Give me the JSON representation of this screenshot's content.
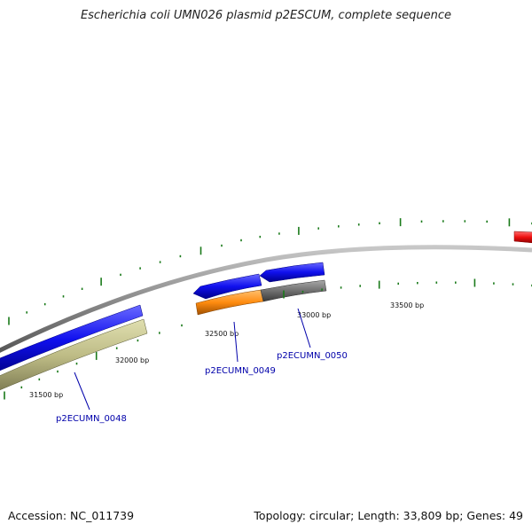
{
  "title": "Escherichia coli UMN026 plasmid p2ESCUM, complete sequence",
  "footer": {
    "accession": "Accession: NC_011739",
    "summary": "Topology: circular; Length: 33,809 bp; Genes: 49"
  },
  "colors": {
    "backbone": "#888888",
    "forward_cds": "#1010ee",
    "reverse_cds": "#bdbb85",
    "orange_feature": "#ff8c10",
    "gray_feature": "#707070",
    "red_feature": "#ee1010",
    "tick": "#1a7a1a",
    "gene_label": "#0000aa"
  },
  "tick_labels": [
    {
      "bp": 31500,
      "text": "31500 bp"
    },
    {
      "bp": 32000,
      "text": "32000 bp"
    },
    {
      "bp": 32500,
      "text": "32500 bp"
    },
    {
      "bp": 33000,
      "text": "33000 bp"
    },
    {
      "bp": 33500,
      "text": "33500 bp"
    }
  ],
  "gene_labels": [
    {
      "id": "g48",
      "text": "p2ECUMN_0048"
    },
    {
      "id": "g49",
      "text": "p2ECUMN_0049"
    },
    {
      "id": "g50",
      "text": "p2ECUMN_0050"
    }
  ]
}
